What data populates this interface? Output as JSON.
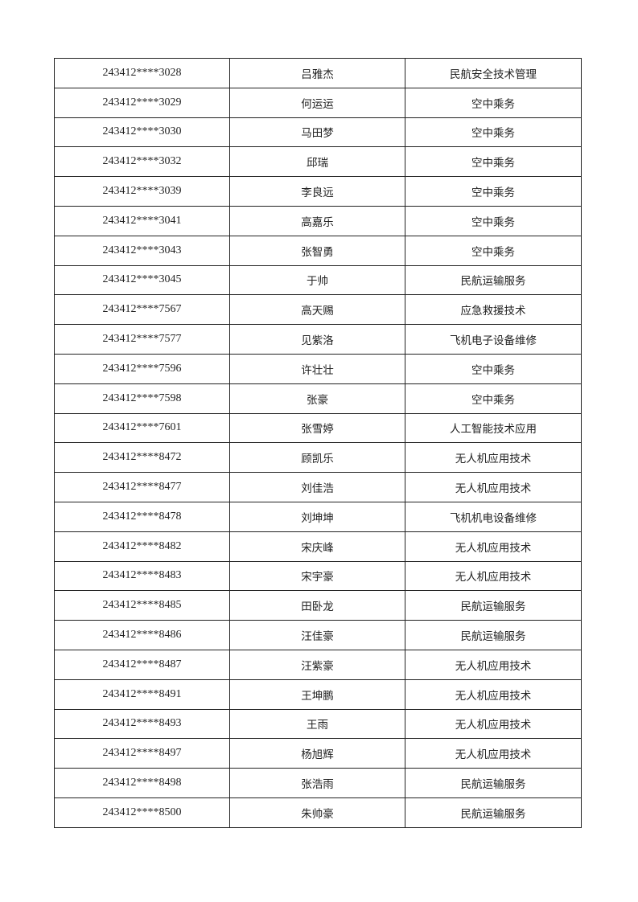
{
  "table": {
    "rows": [
      [
        "243412****3028",
        "吕雅杰",
        "民航安全技术管理"
      ],
      [
        "243412****3029",
        "何运运",
        "空中乘务"
      ],
      [
        "243412****3030",
        "马田梦",
        "空中乘务"
      ],
      [
        "243412****3032",
        "邱瑞",
        "空中乘务"
      ],
      [
        "243412****3039",
        "李良远",
        "空中乘务"
      ],
      [
        "243412****3041",
        "高嘉乐",
        "空中乘务"
      ],
      [
        "243412****3043",
        "张智勇",
        "空中乘务"
      ],
      [
        "243412****3045",
        "于帅",
        "民航运输服务"
      ],
      [
        "243412****7567",
        "高天赐",
        "应急救援技术"
      ],
      [
        "243412****7577",
        "见紫洛",
        "飞机电子设备维修"
      ],
      [
        "243412****7596",
        "许壮壮",
        "空中乘务"
      ],
      [
        "243412****7598",
        "张豪",
        "空中乘务"
      ],
      [
        "243412****7601",
        "张雪婷",
        "人工智能技术应用"
      ],
      [
        "243412****8472",
        "顾凯乐",
        "无人机应用技术"
      ],
      [
        "243412****8477",
        "刘佳浩",
        "无人机应用技术"
      ],
      [
        "243412****8478",
        "刘坤坤",
        "飞机机电设备维修"
      ],
      [
        "243412****8482",
        "宋庆峰",
        "无人机应用技术"
      ],
      [
        "243412****8483",
        "宋宇豪",
        "无人机应用技术"
      ],
      [
        "243412****8485",
        "田卧龙",
        "民航运输服务"
      ],
      [
        "243412****8486",
        "汪佳豪",
        "民航运输服务"
      ],
      [
        "243412****8487",
        "汪紫豪",
        "无人机应用技术"
      ],
      [
        "243412****8491",
        "王坤鹏",
        "无人机应用技术"
      ],
      [
        "243412****8493",
        "王雨",
        "无人机应用技术"
      ],
      [
        "243412****8497",
        "杨旭辉",
        "无人机应用技术"
      ],
      [
        "243412****8498",
        "张浩雨",
        "民航运输服务"
      ],
      [
        "243412****8500",
        "朱帅豪",
        "民航运输服务"
      ]
    ]
  }
}
